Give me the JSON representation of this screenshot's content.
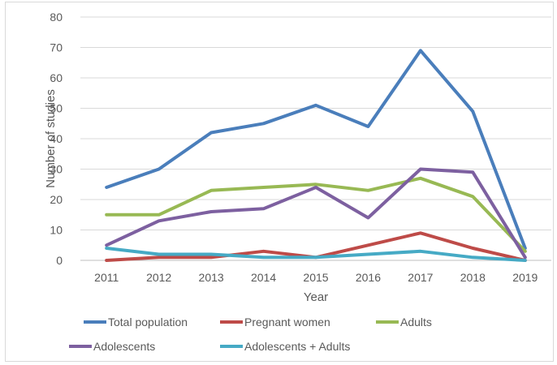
{
  "chart_data": {
    "type": "line",
    "title": "",
    "xlabel": "Year",
    "ylabel": "Number of studies",
    "ylim": [
      0,
      80
    ],
    "yticks": [
      "0",
      "10",
      "20",
      "30",
      "40",
      "50",
      "60",
      "70",
      "80"
    ],
    "categories": [
      "2011",
      "2012",
      "2013",
      "2014",
      "2015",
      "2016",
      "2017",
      "2018",
      "2019"
    ],
    "grid": true,
    "legend_position": "bottom",
    "series": [
      {
        "name": "Total population",
        "color": "#4a7ebb",
        "values": [
          24,
          30,
          42,
          45,
          51,
          44,
          69,
          49,
          4
        ]
      },
      {
        "name": "Pregnant women",
        "color": "#be4b48",
        "values": [
          0,
          1,
          1,
          3,
          1,
          5,
          9,
          4,
          0
        ]
      },
      {
        "name": "Adults",
        "color": "#98b954",
        "values": [
          15,
          15,
          23,
          24,
          25,
          23,
          27,
          21,
          3
        ]
      },
      {
        "name": "Adolescents",
        "color": "#7d60a0",
        "values": [
          5,
          13,
          16,
          17,
          24,
          14,
          30,
          29,
          1
        ]
      },
      {
        "name": "Adolescents + Adults",
        "color": "#46aac5",
        "values": [
          4,
          2,
          2,
          1,
          1,
          2,
          3,
          1,
          0
        ]
      }
    ]
  }
}
